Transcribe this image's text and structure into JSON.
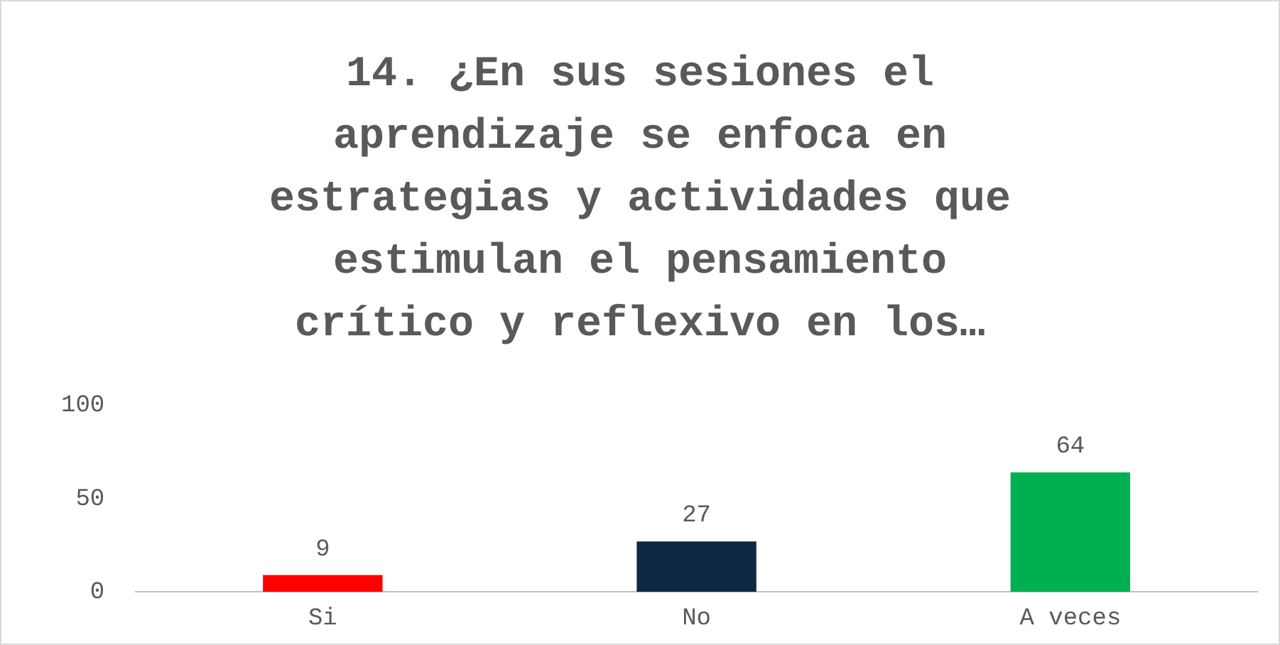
{
  "chart_data": {
    "type": "bar",
    "title": "14. ¿En sus sesiones el aprendizaje se enfoca en estrategias y actividades que estimulan el pensamiento crítico y reflexivo en los…",
    "categories": [
      "Si",
      "No",
      "A veces"
    ],
    "values": [
      9,
      27,
      64
    ],
    "colors": [
      "#ff0000",
      "#0e2841",
      "#00b050"
    ],
    "ylim": [
      0,
      100
    ],
    "yticks": [
      0,
      50,
      100
    ],
    "grid": false,
    "legend": false,
    "data_labels": true
  }
}
